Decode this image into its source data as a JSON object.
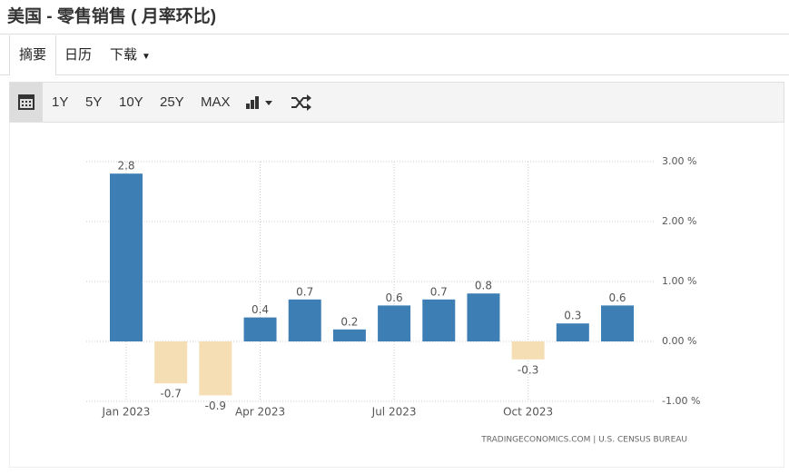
{
  "header": {
    "title": "美国 - 零售销售 ( 月率环比)"
  },
  "tabs": [
    "摘要",
    "日历",
    "下载"
  ],
  "toolbar": [
    "1Y",
    "5Y",
    "10Y",
    "25Y",
    "MAX"
  ],
  "chart_data": {
    "type": "bar",
    "categories": [
      "Jan 2023",
      null,
      null,
      "Apr 2023",
      null,
      null,
      "Jul 2023",
      null,
      null,
      "Oct 2023",
      null,
      null
    ],
    "values": [
      2.8,
      -0.7,
      -0.9,
      0.4,
      0.7,
      0.2,
      0.6,
      0.7,
      0.8,
      -0.3,
      0.3,
      0.6
    ],
    "colors": {
      "positive": "#3d7fb5",
      "negative": "#f5deb3"
    },
    "ylim": [
      -1,
      3
    ],
    "yticks": [
      {
        "value": -1,
        "label": "-1.00 %"
      },
      {
        "value": 0,
        "label": "0.00 %"
      },
      {
        "value": 1,
        "label": "1.00 %"
      },
      {
        "value": 2,
        "label": "2.00 %"
      },
      {
        "value": 3,
        "label": "3.00 %"
      }
    ],
    "grid": true,
    "source": "TRADINGECONOMICS.COM  |  U.S. CENSUS BUREAU"
  }
}
